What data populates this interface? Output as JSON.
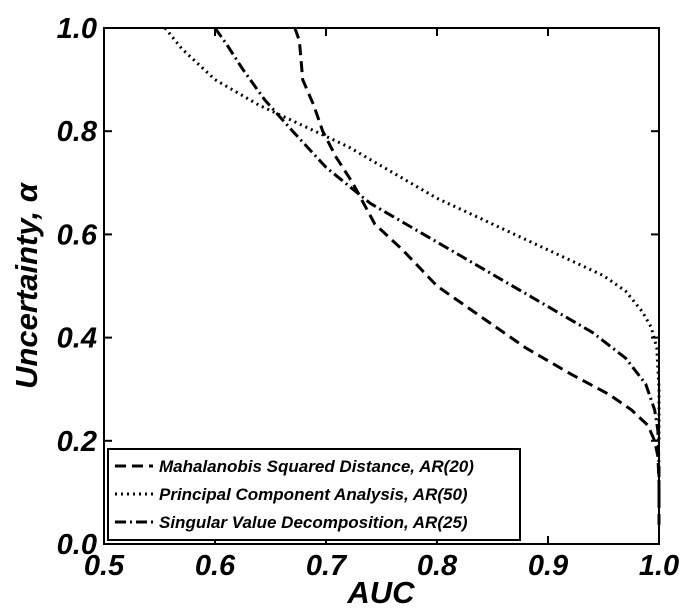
{
  "chart_data": {
    "type": "line",
    "title": "",
    "xlabel": "AUC",
    "ylabel": "Uncertainty, α",
    "xlim": [
      0.5,
      1.0
    ],
    "ylim": [
      0.0,
      1.0
    ],
    "xticks": [
      0.5,
      0.6,
      0.7,
      0.8,
      0.9,
      1.0
    ],
    "yticks": [
      0.0,
      0.2,
      0.4,
      0.6,
      0.8,
      1.0
    ],
    "xtick_labels": [
      "0.5",
      "0.6",
      "0.7",
      "0.8",
      "0.9",
      "1.0"
    ],
    "ytick_labels": [
      "0.0",
      "0.2",
      "0.4",
      "0.6",
      "0.8",
      "1.0"
    ],
    "grid": false,
    "legend_position": "bottom-left",
    "series": [
      {
        "name": "Mahalanobis Squared Distance, AR(20)",
        "line_style": "dashed",
        "color": "#000000",
        "x": [
          0.672,
          0.676,
          0.677,
          0.679,
          0.683,
          0.689,
          0.697,
          0.709,
          0.724,
          0.744,
          0.769,
          0.8,
          0.84,
          0.88,
          0.92,
          0.955,
          0.975,
          0.99,
          0.996,
          0.999,
          1.0,
          1.0,
          1.0
        ],
        "y": [
          1.0,
          0.975,
          0.95,
          0.9,
          0.88,
          0.85,
          0.8,
          0.75,
          0.7,
          0.62,
          0.57,
          0.5,
          0.44,
          0.38,
          0.33,
          0.29,
          0.26,
          0.23,
          0.2,
          0.17,
          0.12,
          0.06,
          0.03
        ]
      },
      {
        "name": "Principal Component Analysis, AR(50)",
        "line_style": "dotted",
        "color": "#000000",
        "x": [
          0.555,
          0.57,
          0.6,
          0.64,
          0.68,
          0.72,
          0.76,
          0.8,
          0.84,
          0.88,
          0.92,
          0.95,
          0.97,
          0.985,
          0.993,
          0.998,
          1.0,
          1.0
        ],
        "y": [
          1.0,
          0.96,
          0.9,
          0.85,
          0.81,
          0.77,
          0.72,
          0.67,
          0.63,
          0.59,
          0.55,
          0.52,
          0.49,
          0.45,
          0.42,
          0.38,
          0.3,
          0.2
        ]
      },
      {
        "name": "Singular Value Decomposition, AR(25)",
        "line_style": "dashdot",
        "color": "#000000",
        "x": [
          0.6,
          0.61,
          0.625,
          0.645,
          0.67,
          0.7,
          0.74,
          0.78,
          0.82,
          0.86,
          0.9,
          0.94,
          0.97,
          0.988,
          0.996,
          0.999,
          1.0,
          1.0
        ],
        "y": [
          1.0,
          0.97,
          0.92,
          0.86,
          0.8,
          0.73,
          0.66,
          0.61,
          0.56,
          0.51,
          0.46,
          0.41,
          0.36,
          0.31,
          0.26,
          0.22,
          0.15,
          0.08
        ]
      }
    ]
  }
}
